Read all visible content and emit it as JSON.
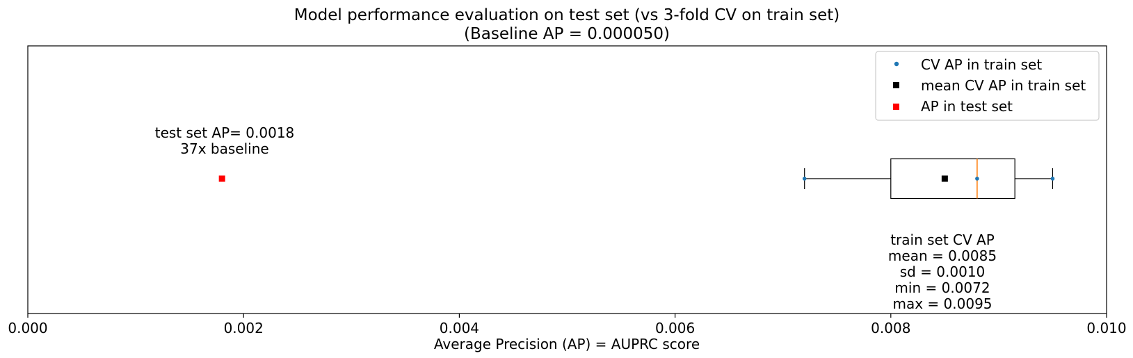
{
  "chart_data": {
    "type": "box",
    "title_line1": "Model performance evaluation on test set (vs 3-fold CV on train set)",
    "title_line2": "(Baseline AP = 0.000050)",
    "xlabel": "Average Precision (AP) = AUPRC score",
    "ylabel": "",
    "xlim": [
      0.0,
      0.01
    ],
    "xticks": [
      0.0,
      0.002,
      0.004,
      0.006,
      0.008,
      0.01
    ],
    "xtick_labels": [
      "0.000",
      "0.002",
      "0.004",
      "0.006",
      "0.008",
      "0.010"
    ],
    "grid": false,
    "legend_position": "top-right",
    "legend": [
      {
        "label": "CV AP in train set",
        "marker": "dot",
        "color": "#1f77b4"
      },
      {
        "label": "mean CV AP in train set",
        "marker": "square",
        "color": "#000000"
      },
      {
        "label": "AP in test set",
        "marker": "square",
        "color": "#ff0000"
      }
    ],
    "cv_ap_values": [
      0.0072,
      0.0088,
      0.0095
    ],
    "box": {
      "whisker_low": 0.0072,
      "q1": 0.008,
      "median": 0.0088,
      "q3": 0.00915,
      "whisker_high": 0.0095,
      "median_color": "#ff7f0e"
    },
    "mean_cv_ap": 0.0085,
    "test_ap": 0.0018,
    "test_annotation": [
      "test set AP= 0.0018",
      "37x baseline"
    ],
    "train_annotation": [
      "train set CV AP",
      "mean = 0.0085",
      "sd = 0.0010",
      "min = 0.0072",
      "max = 0.0095"
    ]
  }
}
